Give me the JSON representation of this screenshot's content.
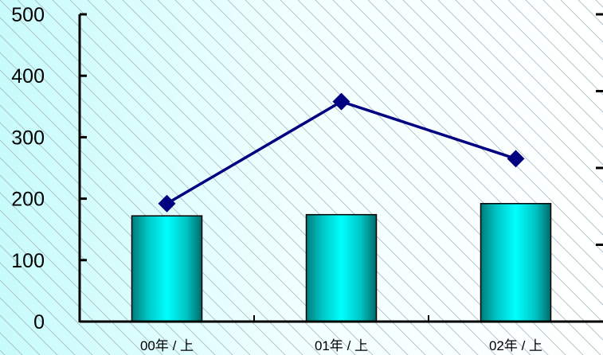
{
  "chart_data": {
    "type": "bar",
    "categories": [
      "00年 / 上",
      "01年 / 上",
      "02年 / 上"
    ],
    "series": [
      {
        "type": "bar",
        "axis": "left",
        "values": [
          172,
          174,
          192
        ],
        "color": "#00cccc"
      },
      {
        "type": "line",
        "axis": "right",
        "values": [
          192,
          358,
          265
        ],
        "color": "#000080",
        "marker": "diamond"
      }
    ],
    "y_left": {
      "ylim": [
        0,
        500
      ],
      "ticks": [
        0,
        100,
        200,
        300,
        400,
        500
      ],
      "tick_labels": [
        "0",
        "100",
        "200",
        "300",
        "400",
        "500"
      ]
    },
    "y_right": {
      "ticks": 4,
      "labels_visible": false
    },
    "title": "",
    "xlabel": "",
    "ylabel": "",
    "grid": false,
    "background": "diagonal-hatch-light-cyan"
  }
}
